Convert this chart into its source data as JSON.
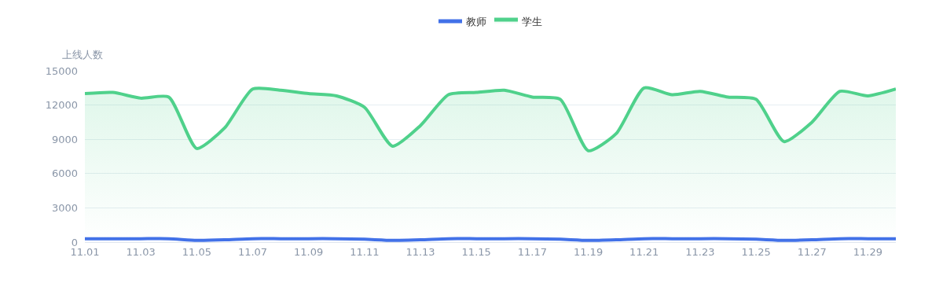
{
  "chart_data": {
    "type": "line",
    "ylabel": "上线人数",
    "categories": [
      "11.01",
      null,
      "11.03",
      null,
      "11.05",
      null,
      "11.07",
      null,
      "11.09",
      null,
      "11.11",
      null,
      "11.13",
      null,
      "11.15",
      null,
      "11.17",
      null,
      "11.19",
      null,
      "11.21",
      null,
      "11.23",
      null,
      "11.25",
      null,
      "11.27",
      null,
      "11.29",
      null
    ],
    "series": [
      {
        "name": "教师",
        "color": "#4271e8",
        "values": [
          300,
          300,
          300,
          300,
          150,
          200,
          300,
          300,
          300,
          300,
          250,
          150,
          200,
          300,
          300,
          300,
          300,
          250,
          150,
          200,
          300,
          300,
          300,
          300,
          250,
          150,
          200,
          300,
          300,
          300
        ]
      },
      {
        "name": "学生",
        "color": "#4fd18b",
        "type": "area",
        "values": [
          13000,
          13100,
          12600,
          12700,
          8200,
          10000,
          13400,
          13300,
          13000,
          12800,
          11800,
          8400,
          10200,
          12900,
          13100,
          13300,
          12700,
          12500,
          8000,
          9500,
          13500,
          12900,
          13200,
          12700,
          12500,
          8800,
          10500,
          13200,
          12800,
          13400
        ]
      }
    ],
    "ylim": [
      0,
      15000
    ],
    "yticks": [
      0,
      3000,
      6000,
      9000,
      12000,
      15000
    ],
    "grid": "y",
    "legend": "top",
    "marker": "none",
    "line_style": "solid"
  }
}
